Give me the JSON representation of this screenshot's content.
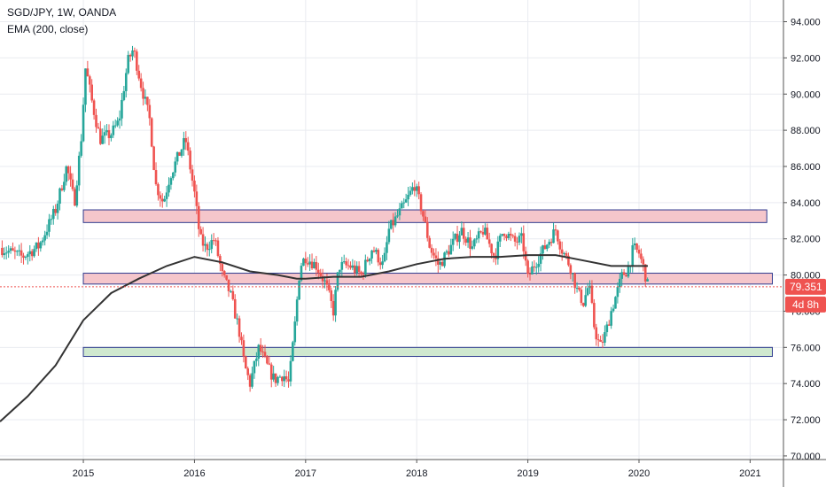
{
  "legend": {
    "symbol": "SGD/JPY, 1W, OANDA",
    "indicator": "EMA (200, close)"
  },
  "price_label": {
    "value": "79.351",
    "color": "#ef5350"
  },
  "countdown_label": {
    "value": "4d 8h",
    "color": "#ef5350"
  },
  "colors": {
    "up": "#26a69a",
    "down": "#ef5350",
    "ema": "#333333",
    "resistance_fill": "#f5c6cb",
    "support_fill": "#cfe8cf",
    "zone_border": "#2f3a8f",
    "grid": "#e9ebf0"
  },
  "chart_data": {
    "type": "candlestick",
    "title": "SGD/JPY, 1W, OANDA",
    "x_axis": {
      "ticks": [
        "2015",
        "2016",
        "2017",
        "2018",
        "2019",
        "2020",
        "2021"
      ],
      "range": [
        2014.25,
        2021.3
      ]
    },
    "y_axis": {
      "ticks": [
        "70.000",
        "72.000",
        "74.000",
        "76.000",
        "78.000",
        "80.000",
        "82.000",
        "84.000",
        "86.000",
        "88.000",
        "90.000",
        "92.000",
        "94.000"
      ],
      "range": [
        69.8,
        95.2
      ]
    },
    "grid": true,
    "last_price": 79.351,
    "price_path": [
      [
        2014.25,
        81.5
      ],
      [
        2014.45,
        81.0
      ],
      [
        2014.6,
        81.6
      ],
      [
        2014.75,
        83.6
      ],
      [
        2014.85,
        86.0
      ],
      [
        2014.92,
        84.0
      ],
      [
        2014.98,
        87.5
      ],
      [
        2015.02,
        91.5
      ],
      [
        2015.08,
        89.5
      ],
      [
        2015.15,
        87.5
      ],
      [
        2015.25,
        87.8
      ],
      [
        2015.32,
        88.5
      ],
      [
        2015.4,
        91.8
      ],
      [
        2015.45,
        92.5
      ],
      [
        2015.52,
        90.5
      ],
      [
        2015.6,
        88.5
      ],
      [
        2015.65,
        85.0
      ],
      [
        2015.72,
        84.0
      ],
      [
        2015.78,
        85.5
      ],
      [
        2015.85,
        86.5
      ],
      [
        2015.92,
        87.5
      ],
      [
        2016.0,
        84.5
      ],
      [
        2016.05,
        82.0
      ],
      [
        2016.1,
        81.5
      ],
      [
        2016.18,
        82.0
      ],
      [
        2016.25,
        80.0
      ],
      [
        2016.32,
        79.0
      ],
      [
        2016.4,
        77.0
      ],
      [
        2016.45,
        75.0
      ],
      [
        2016.5,
        74.0
      ],
      [
        2016.58,
        76.0
      ],
      [
        2016.65,
        75.0
      ],
      [
        2016.72,
        74.2
      ],
      [
        2016.8,
        74.5
      ],
      [
        2016.85,
        74.0
      ],
      [
        2016.9,
        77.0
      ],
      [
        2016.95,
        80.5
      ],
      [
        2017.0,
        81.0
      ],
      [
        2017.1,
        80.5
      ],
      [
        2017.18,
        79.5
      ],
      [
        2017.25,
        78.0
      ],
      [
        2017.3,
        80.5
      ],
      [
        2017.4,
        80.5
      ],
      [
        2017.5,
        80.0
      ],
      [
        2017.6,
        81.5
      ],
      [
        2017.7,
        80.5
      ],
      [
        2017.75,
        82.5
      ],
      [
        2017.8,
        83.0
      ],
      [
        2017.9,
        84.0
      ],
      [
        2017.98,
        85.0
      ],
      [
        2018.05,
        83.5
      ],
      [
        2018.12,
        81.5
      ],
      [
        2018.2,
        80.5
      ],
      [
        2018.3,
        81.5
      ],
      [
        2018.4,
        82.5
      ],
      [
        2018.5,
        81.5
      ],
      [
        2018.6,
        82.5
      ],
      [
        2018.7,
        81.0
      ],
      [
        2018.78,
        82.5
      ],
      [
        2018.88,
        81.8
      ],
      [
        2018.95,
        82.0
      ],
      [
        2019.0,
        79.8
      ],
      [
        2019.05,
        80.5
      ],
      [
        2019.15,
        81.5
      ],
      [
        2019.25,
        82.5
      ],
      [
        2019.3,
        81.5
      ],
      [
        2019.38,
        80.5
      ],
      [
        2019.45,
        79.0
      ],
      [
        2019.5,
        78.5
      ],
      [
        2019.55,
        79.5
      ],
      [
        2019.6,
        77.0
      ],
      [
        2019.65,
        76.0
      ],
      [
        2019.7,
        76.8
      ],
      [
        2019.75,
        78.0
      ],
      [
        2019.8,
        79.0
      ],
      [
        2019.85,
        80.0
      ],
      [
        2019.9,
        80.3
      ],
      [
        2019.95,
        81.5
      ],
      [
        2020.0,
        81.2
      ],
      [
        2020.05,
        80.2
      ],
      [
        2020.08,
        79.35
      ]
    ],
    "ema_path": [
      [
        2014.25,
        71.9
      ],
      [
        2014.5,
        73.3
      ],
      [
        2014.75,
        75.0
      ],
      [
        2015.0,
        77.5
      ],
      [
        2015.25,
        79.0
      ],
      [
        2015.5,
        79.8
      ],
      [
        2015.75,
        80.5
      ],
      [
        2016.0,
        81.0
      ],
      [
        2016.25,
        80.7
      ],
      [
        2016.5,
        80.2
      ],
      [
        2016.75,
        80.0
      ],
      [
        2016.92,
        79.8
      ],
      [
        2017.0,
        79.8
      ],
      [
        2017.25,
        79.9
      ],
      [
        2017.5,
        79.9
      ],
      [
        2017.75,
        80.2
      ],
      [
        2018.0,
        80.6
      ],
      [
        2018.25,
        80.9
      ],
      [
        2018.5,
        81.0
      ],
      [
        2018.75,
        81.0
      ],
      [
        2019.0,
        81.1
      ],
      [
        2019.25,
        81.1
      ],
      [
        2019.5,
        80.8
      ],
      [
        2019.75,
        80.5
      ],
      [
        2020.0,
        80.5
      ],
      [
        2020.08,
        80.5
      ]
    ],
    "zones": [
      {
        "kind": "resistance",
        "x": [
          2015.0,
          2021.15
        ],
        "y": [
          82.9,
          83.6
        ]
      },
      {
        "kind": "resistance",
        "x": [
          2015.0,
          2021.2
        ],
        "y": [
          79.5,
          80.1
        ]
      },
      {
        "kind": "support",
        "x": [
          2015.0,
          2021.2
        ],
        "y": [
          75.5,
          76.0
        ]
      }
    ]
  }
}
